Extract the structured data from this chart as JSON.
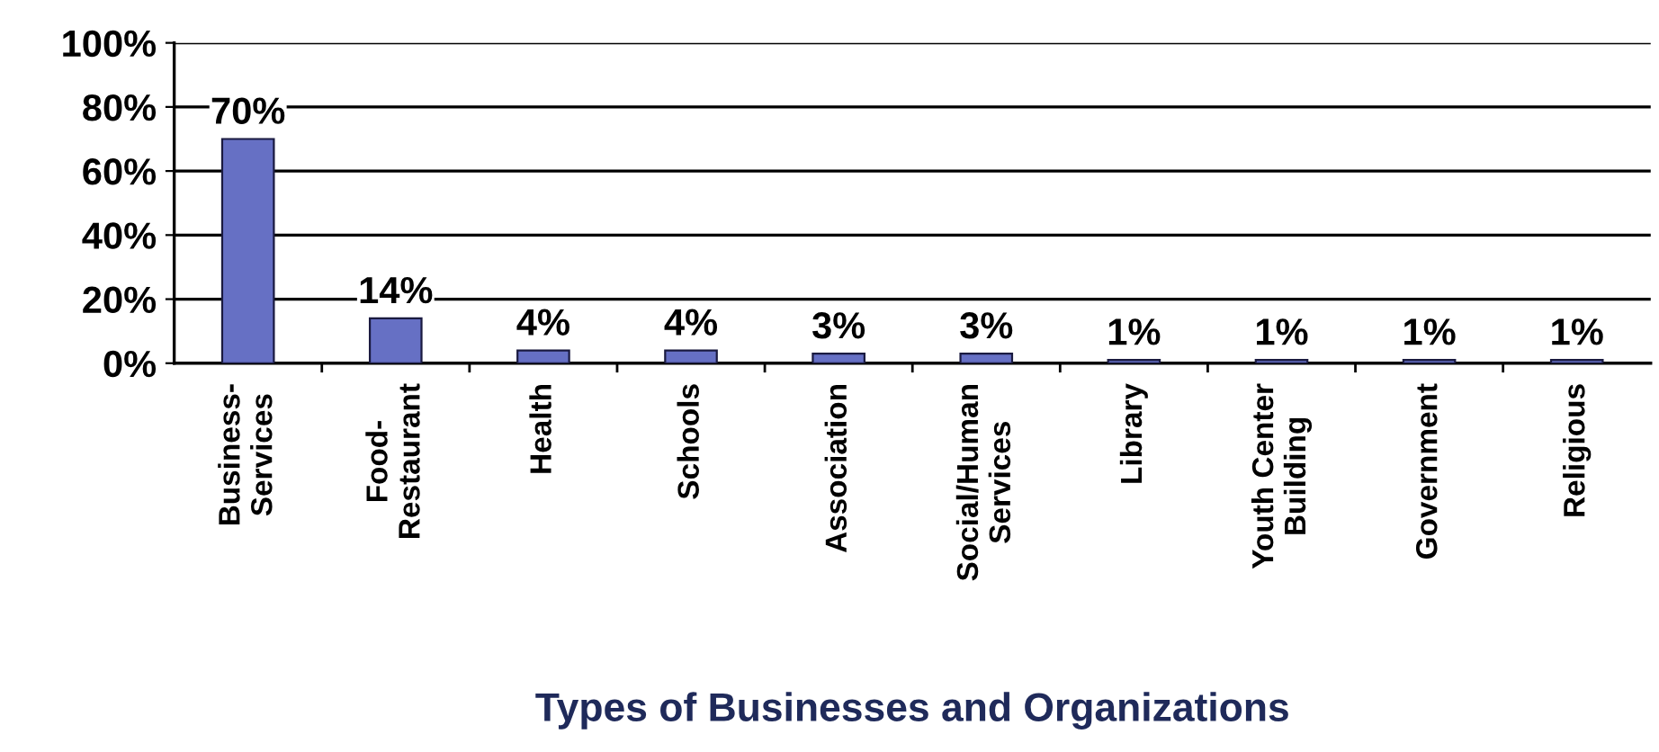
{
  "chart_data": {
    "type": "bar",
    "xlabel": "Types of Businesses and Organizations",
    "categories": [
      "Business-\nServices",
      "Food-\nRestaurant",
      "Health",
      "Schools",
      "Association",
      "Social/Human\nServices",
      "Library",
      "Youth Center\nBuilding",
      "Government",
      "Religious"
    ],
    "values": [
      70,
      14,
      4,
      4,
      3,
      3,
      1,
      1,
      1,
      1
    ],
    "value_labels": [
      "70%",
      "14%",
      "4%",
      "4%",
      "3%",
      "3%",
      "1%",
      "1%",
      "1%",
      "1%"
    ],
    "color": "#6670c4",
    "ylim": [
      0,
      100
    ],
    "yticks": [
      {
        "value": 0,
        "label": "0%"
      },
      {
        "value": 20,
        "label": "20%"
      },
      {
        "value": 40,
        "label": "40%"
      },
      {
        "value": 60,
        "label": "60%"
      },
      {
        "value": 80,
        "label": "80%"
      },
      {
        "value": 100,
        "label": "100%"
      }
    ],
    "grid": "y"
  }
}
